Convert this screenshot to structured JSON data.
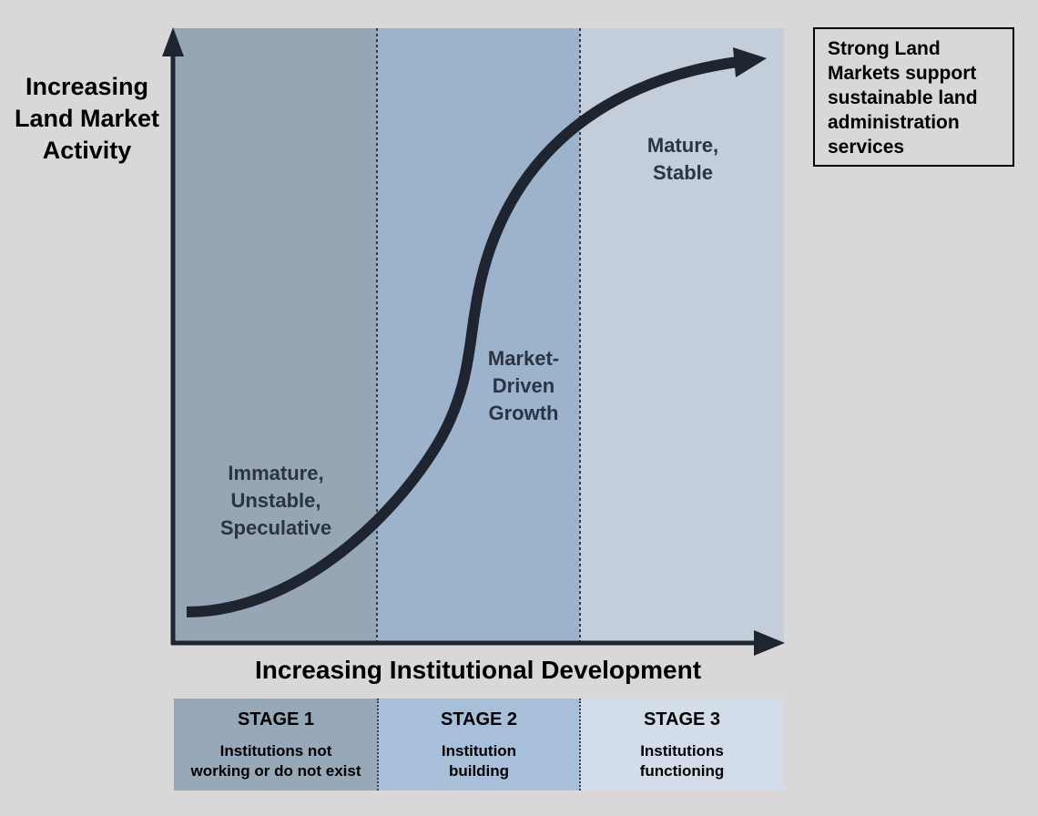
{
  "y_axis": {
    "title": "Increasing Land Market Activity"
  },
  "x_axis": {
    "title": "Increasing Institutional Development"
  },
  "note": {
    "text": "Strong Land Markets support sustainable land administration services"
  },
  "zones": [
    {
      "label": "Immature,\nUnstable,\nSpeculative",
      "color": "#96a6b5"
    },
    {
      "label": "Market-\nDriven\nGrowth",
      "color": "#9db3cb"
    },
    {
      "label": "Mature,\nStable",
      "color": "#c3ceda"
    }
  ],
  "stages": [
    {
      "title": "STAGE 1",
      "description": "Institutions not\nworking or do not exist",
      "color": "#97a8b8"
    },
    {
      "title": "STAGE 2",
      "description": "Institution\nbuilding",
      "color": "#a8bfda"
    },
    {
      "title": "STAGE 3",
      "description": "Institutions\nfunctioning",
      "color": "#d3dde9"
    }
  ],
  "colors": {
    "background": "#d9d7d8",
    "axis": "#1e2530",
    "curve": "#1e2530",
    "zone_text": "#2a3442"
  },
  "icons": {
    "curve_arrowhead": "arrow-right-icon",
    "x_axis_arrowhead": "arrow-right-icon",
    "y_axis_arrowhead": "arrow-up-icon"
  }
}
